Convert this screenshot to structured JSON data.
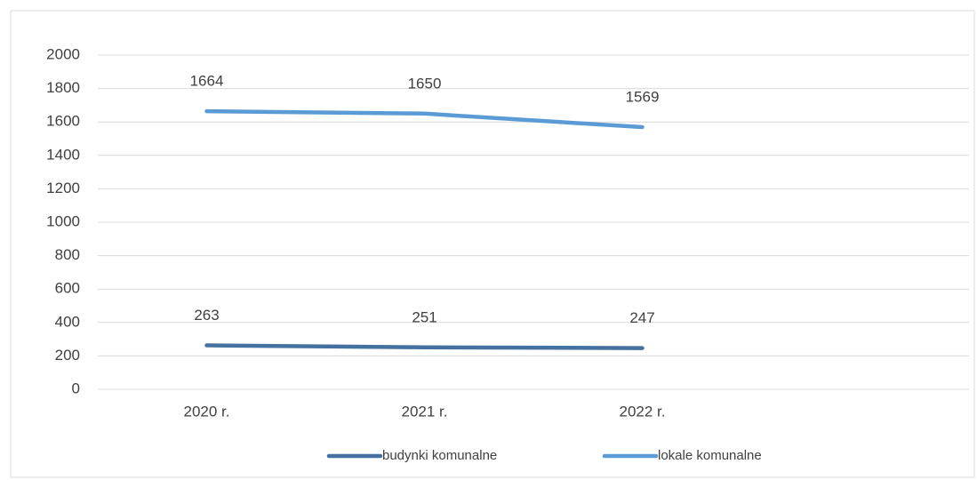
{
  "chart_data": {
    "type": "line",
    "categories": [
      "2020 r.",
      "2021 r.",
      "2022 r.",
      null
    ],
    "series": [
      {
        "name": "budynki komunalne",
        "color": "#44719f",
        "values": [
          263,
          251,
          247,
          null
        ]
      },
      {
        "name": "lokale komunalne",
        "color": "#5b9bd5",
        "values": [
          1664,
          1650,
          1569,
          null
        ]
      }
    ],
    "ylim": [
      0,
      2000
    ],
    "yticks": [
      0,
      200,
      400,
      600,
      800,
      1000,
      1200,
      1400,
      1600,
      1800,
      2000
    ],
    "grid": true,
    "legend": "bottom"
  }
}
